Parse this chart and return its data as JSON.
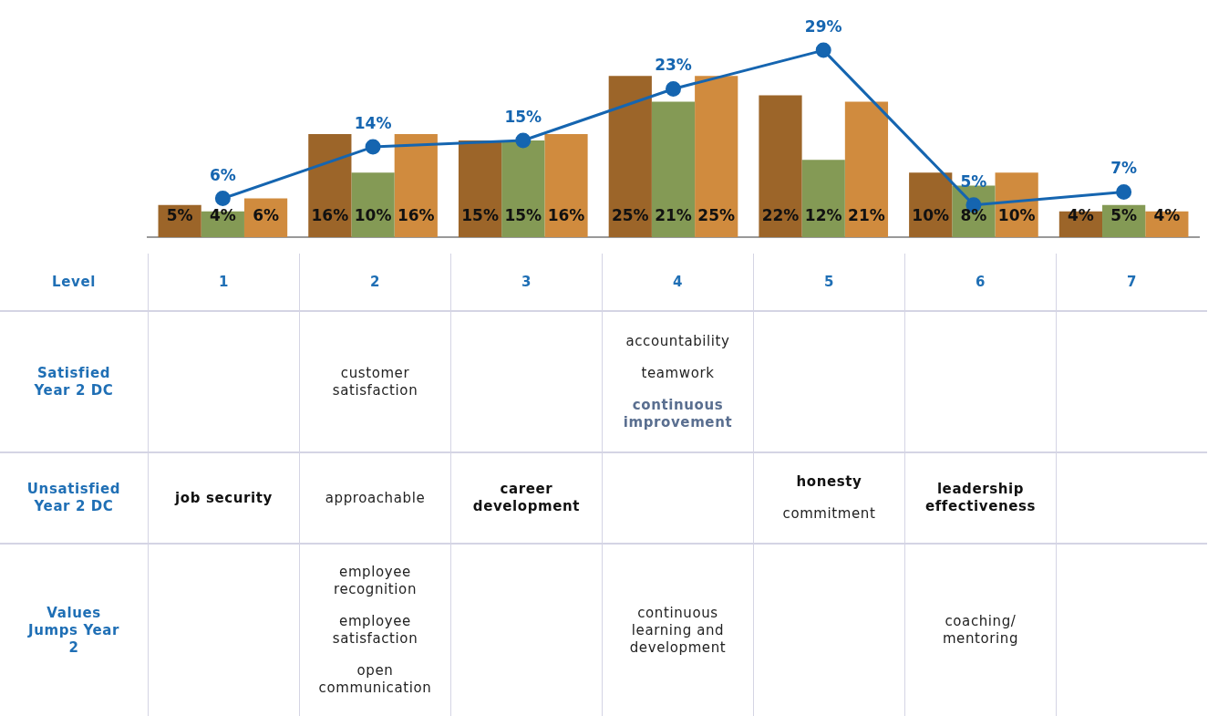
{
  "chart_data": {
    "type": "bar",
    "xlabel": "Level",
    "categories": [
      "1",
      "2",
      "3",
      "4",
      "5",
      "6",
      "7"
    ],
    "series": [
      {
        "color": "#9c6529",
        "values": [
          5,
          16,
          15,
          25,
          22,
          10,
          4
        ],
        "value_labels": [
          "5%",
          "16%",
          "15%",
          "25%",
          "22%",
          "10%",
          "4%"
        ]
      },
      {
        "color": "#849a55",
        "values": [
          4,
          10,
          15,
          21,
          12,
          8,
          5
        ],
        "value_labels": [
          "4%",
          "10%",
          "15%",
          "21%",
          "12%",
          "8%",
          "5%"
        ]
      },
      {
        "color": "#d08b3e",
        "values": [
          6,
          16,
          16,
          25,
          21,
          10,
          4
        ],
        "value_labels": [
          "6%",
          "16%",
          "16%",
          "25%",
          "21%",
          "10%",
          "4%"
        ]
      },
      {
        "type": "line",
        "color": "#1565b0",
        "marker": "circle",
        "values": [
          6,
          14,
          15,
          23,
          29,
          5,
          7
        ],
        "value_labels": [
          "6%",
          "14%",
          "15%",
          "23%",
          "29%",
          "5%",
          "7%"
        ]
      }
    ],
    "grid": false,
    "legend": false,
    "annotations": [
      "Satisfied Year 2 DC",
      "Unsatisfied Year 2 DC",
      "Values Jumps Year 2",
      "customer satisfaction",
      "accountability",
      "teamwork",
      "continuous improvement",
      "job security",
      "approachable",
      "career development",
      "honesty",
      "commitment",
      "leadership effectiveness",
      "employee recognition",
      "employee satisfaction",
      "open communication",
      "continuous learning and development",
      "coaching/ mentoring"
    ]
  }
}
